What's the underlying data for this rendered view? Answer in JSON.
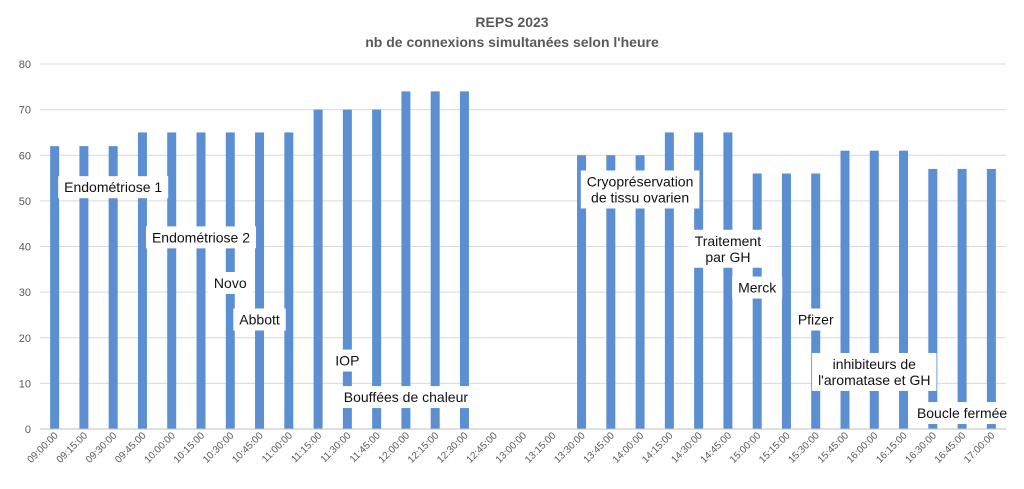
{
  "chart_data": {
    "type": "bar",
    "title": "REPS  2023",
    "subtitle": "nb de connexions simultanées selon l'heure",
    "ylim": [
      0,
      80
    ],
    "yticks": [
      0,
      10,
      20,
      30,
      40,
      50,
      60,
      70,
      80
    ],
    "grid": true,
    "bar_color": "#5b8fd1",
    "categories": [
      "09:00:00",
      "09:15:00",
      "09:30:00",
      "09:45:00",
      "10:00:00",
      "10:15:00",
      "10:30:00",
      "10:45:00",
      "11:00:00",
      "11:15:00",
      "11:30:00",
      "11:45:00",
      "12:00:00",
      "12:15:00",
      "12:30:00",
      "12:45:00",
      "13:00:00",
      "13:15:00",
      "13:30:00",
      "13:45:00",
      "14:00:00",
      "14:15:00",
      "14:30:00",
      "14:45:00",
      "15:00:00",
      "15:15:00",
      "15:30:00",
      "15:45:00",
      "16:00:00",
      "16:15:00",
      "16:30:00",
      "16:45:00",
      "17:00:00"
    ],
    "values": [
      62,
      62,
      62,
      65,
      65,
      65,
      65,
      65,
      65,
      70,
      70,
      70,
      74,
      74,
      74,
      0,
      0,
      0,
      60,
      60,
      60,
      65,
      65,
      65,
      56,
      56,
      56,
      61,
      61,
      61,
      57,
      57,
      57
    ],
    "annotations": [
      {
        "lines": [
          "Endométriose 1"
        ],
        "category": "09:30:00",
        "y": 53
      },
      {
        "lines": [
          "Endométriose  2"
        ],
        "category": "10:15:00",
        "y": 42
      },
      {
        "lines": [
          "Novo"
        ],
        "category": "10:30:00",
        "y": 32
      },
      {
        "lines": [
          "Abbott"
        ],
        "category": "10:45:00",
        "y": 24
      },
      {
        "lines": [
          "IOP"
        ],
        "category": "11:30:00",
        "y": 15
      },
      {
        "lines": [
          "Bouffées de chaleur"
        ],
        "category": "12:00:00",
        "y": 7
      },
      {
        "lines": [
          "Cryopréservation",
          "de tissu ovarien"
        ],
        "category": "14:00:00",
        "y": 52.5
      },
      {
        "lines": [
          "Traitement",
          "par GH"
        ],
        "category": "14:45:00",
        "y": 39.5
      },
      {
        "lines": [
          "Merck"
        ],
        "category": "15:00:00",
        "y": 31
      },
      {
        "lines": [
          "Pfizer"
        ],
        "category": "15:30:00",
        "y": 24
      },
      {
        "lines": [
          "inhibiteurs de",
          "l'aromatase et GH"
        ],
        "category": "16:00:00",
        "y": 12.5
      },
      {
        "lines": [
          "Boucle fermée"
        ],
        "category": "16:45:00",
        "y": 3.5
      }
    ]
  }
}
